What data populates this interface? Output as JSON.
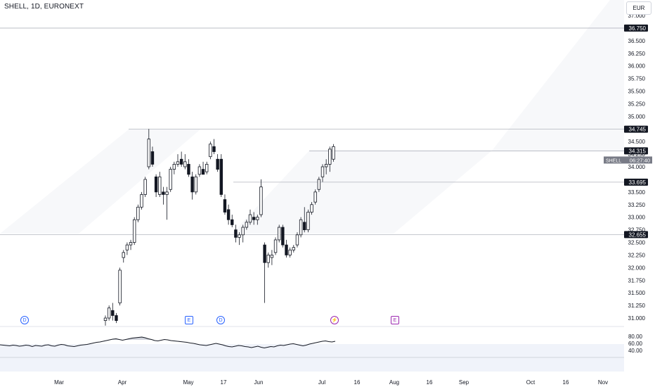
{
  "header": {
    "symbol_title": "SHELL, 1D, EURONEXT",
    "currency_button": "EUR"
  },
  "price_axis": {
    "ticks": [
      "37.000",
      "36.500",
      "36.250",
      "36.000",
      "35.750",
      "35.500",
      "35.250",
      "35.000",
      "34.500",
      "34.250",
      "34.000",
      "33.500",
      "33.250",
      "33.000",
      "32.750",
      "32.500",
      "32.250",
      "32.000",
      "31.750",
      "31.500",
      "31.250",
      "31.000"
    ],
    "level_tags": [
      {
        "value": "36.750",
        "name": "level-tag-36750"
      },
      {
        "value": "34.745",
        "name": "level-tag-34745"
      },
      {
        "value": "34.315",
        "name": "level-tag-34315"
      },
      {
        "value": "33.695",
        "name": "level-tag-33695"
      },
      {
        "value": "32.655",
        "name": "level-tag-32655"
      }
    ],
    "symbol_tag": "SHELL",
    "countdown": "06:27:40"
  },
  "rsi_axis": {
    "ticks": [
      "80.00",
      "60.00",
      "40.00"
    ]
  },
  "time_axis": {
    "labels": [
      "Mar",
      "Apr",
      "May",
      "17",
      "Jun",
      "Jul",
      "16",
      "Aug",
      "16",
      "Sep",
      "Oct",
      "16",
      "Nov"
    ]
  },
  "events": [
    {
      "label": "D",
      "kind": "dividend",
      "name": "dividend-event-icon-1"
    },
    {
      "label": "E",
      "kind": "earnings",
      "name": "earnings-event-icon-1"
    },
    {
      "label": "D",
      "kind": "dividend",
      "name": "dividend-event-icon-2"
    },
    {
      "label": "⚡",
      "kind": "split",
      "name": "flash-event-icon"
    },
    {
      "label": "E",
      "kind": "earnings-upcoming",
      "name": "earnings-event-icon-2"
    }
  ],
  "colors": {
    "candle": "#131722",
    "grid_line": "#b2b5be",
    "rsi_band": "#f0f3fa",
    "event_blue": "#2962ff",
    "event_purple": "#9c27b0",
    "tag_dark": "#131722",
    "tag_grey": "#787b86"
  },
  "chart_data": {
    "type": "candlestick",
    "title": "SHELL, 1D, EURONEXT",
    "y_range": [
      30.9,
      37.1
    ],
    "candles": [
      {
        "o": 30.95,
        "h": 31.05,
        "l": 30.85,
        "c": 31.0
      },
      {
        "o": 31.0,
        "h": 31.25,
        "l": 30.95,
        "c": 31.2
      },
      {
        "o": 31.15,
        "h": 31.3,
        "l": 30.95,
        "c": 31.05
      },
      {
        "o": 31.05,
        "h": 31.1,
        "l": 30.9,
        "c": 30.95
      },
      {
        "o": 31.3,
        "h": 32.0,
        "l": 31.25,
        "c": 31.95
      },
      {
        "o": 32.2,
        "h": 32.35,
        "l": 32.1,
        "c": 32.3
      },
      {
        "o": 32.35,
        "h": 32.5,
        "l": 32.25,
        "c": 32.45
      },
      {
        "o": 32.45,
        "h": 32.55,
        "l": 32.35,
        "c": 32.5
      },
      {
        "o": 32.5,
        "h": 33.0,
        "l": 32.45,
        "c": 32.95
      },
      {
        "o": 32.95,
        "h": 33.25,
        "l": 32.9,
        "c": 33.2
      },
      {
        "o": 33.2,
        "h": 33.5,
        "l": 33.15,
        "c": 33.45
      },
      {
        "o": 33.45,
        "h": 33.8,
        "l": 33.4,
        "c": 33.75
      },
      {
        "o": 34.0,
        "h": 34.75,
        "l": 33.95,
        "c": 34.55
      },
      {
        "o": 34.3,
        "h": 34.4,
        "l": 34.0,
        "c": 34.05
      },
      {
        "o": 33.8,
        "h": 33.85,
        "l": 33.4,
        "c": 33.5
      },
      {
        "o": 33.45,
        "h": 33.9,
        "l": 33.4,
        "c": 33.8
      },
      {
        "o": 33.5,
        "h": 33.6,
        "l": 33.25,
        "c": 33.45
      },
      {
        "o": 33.45,
        "h": 33.6,
        "l": 32.95,
        "c": 33.5
      },
      {
        "o": 33.55,
        "h": 34.0,
        "l": 33.5,
        "c": 33.95
      },
      {
        "o": 33.95,
        "h": 34.1,
        "l": 33.85,
        "c": 34.05
      },
      {
        "o": 34.05,
        "h": 34.25,
        "l": 34.0,
        "c": 34.1
      },
      {
        "o": 34.15,
        "h": 34.3,
        "l": 34.0,
        "c": 34.05
      },
      {
        "o": 34.0,
        "h": 34.25,
        "l": 33.95,
        "c": 34.1
      },
      {
        "o": 34.05,
        "h": 34.15,
        "l": 33.8,
        "c": 33.85
      },
      {
        "o": 33.8,
        "h": 33.9,
        "l": 33.35,
        "c": 33.5
      },
      {
        "o": 33.5,
        "h": 33.85,
        "l": 33.45,
        "c": 33.8
      },
      {
        "o": 33.85,
        "h": 34.05,
        "l": 33.8,
        "c": 34.0
      },
      {
        "o": 33.95,
        "h": 34.1,
        "l": 33.9,
        "c": 33.85
      },
      {
        "o": 33.9,
        "h": 34.1,
        "l": 33.85,
        "c": 34.05
      },
      {
        "o": 34.2,
        "h": 34.5,
        "l": 34.15,
        "c": 34.45
      },
      {
        "o": 34.4,
        "h": 34.55,
        "l": 34.25,
        "c": 34.3
      },
      {
        "o": 34.15,
        "h": 34.25,
        "l": 33.9,
        "c": 33.95
      },
      {
        "o": 34.15,
        "h": 34.25,
        "l": 33.4,
        "c": 33.45
      },
      {
        "o": 33.35,
        "h": 33.45,
        "l": 33.05,
        "c": 33.1
      },
      {
        "o": 33.15,
        "h": 33.25,
        "l": 32.85,
        "c": 32.95
      },
      {
        "o": 32.95,
        "h": 33.05,
        "l": 32.8,
        "c": 32.85
      },
      {
        "o": 32.75,
        "h": 32.85,
        "l": 32.5,
        "c": 32.6
      },
      {
        "o": 32.6,
        "h": 32.7,
        "l": 32.45,
        "c": 32.65
      },
      {
        "o": 32.65,
        "h": 32.85,
        "l": 32.5,
        "c": 32.8
      },
      {
        "o": 32.8,
        "h": 32.95,
        "l": 32.75,
        "c": 32.9
      },
      {
        "o": 32.9,
        "h": 33.15,
        "l": 32.85,
        "c": 33.05
      },
      {
        "o": 33.0,
        "h": 33.1,
        "l": 32.85,
        "c": 32.95
      },
      {
        "o": 32.95,
        "h": 33.05,
        "l": 32.85,
        "c": 33.0
      },
      {
        "o": 33.05,
        "h": 33.75,
        "l": 33.0,
        "c": 33.6
      },
      {
        "o": 32.45,
        "h": 32.5,
        "l": 31.3,
        "c": 32.1
      },
      {
        "o": 32.1,
        "h": 32.3,
        "l": 32.0,
        "c": 32.25
      },
      {
        "o": 32.2,
        "h": 32.35,
        "l": 32.05,
        "c": 32.25
      },
      {
        "o": 32.3,
        "h": 32.6,
        "l": 32.25,
        "c": 32.55
      },
      {
        "o": 32.55,
        "h": 32.85,
        "l": 32.5,
        "c": 32.8
      },
      {
        "o": 32.8,
        "h": 32.85,
        "l": 32.4,
        "c": 32.45
      },
      {
        "o": 32.45,
        "h": 32.55,
        "l": 32.2,
        "c": 32.25
      },
      {
        "o": 32.25,
        "h": 32.4,
        "l": 32.2,
        "c": 32.35
      },
      {
        "o": 32.35,
        "h": 32.45,
        "l": 32.3,
        "c": 32.4
      },
      {
        "o": 32.45,
        "h": 32.7,
        "l": 32.4,
        "c": 32.65
      },
      {
        "o": 32.65,
        "h": 33.0,
        "l": 32.6,
        "c": 32.95
      },
      {
        "o": 32.9,
        "h": 33.2,
        "l": 32.7,
        "c": 32.75
      },
      {
        "o": 32.75,
        "h": 33.15,
        "l": 32.7,
        "c": 33.1
      },
      {
        "o": 33.1,
        "h": 33.3,
        "l": 33.05,
        "c": 33.25
      },
      {
        "o": 33.3,
        "h": 33.55,
        "l": 33.25,
        "c": 33.5
      },
      {
        "o": 33.55,
        "h": 33.8,
        "l": 33.5,
        "c": 33.75
      },
      {
        "o": 33.8,
        "h": 34.05,
        "l": 33.7,
        "c": 34.0
      },
      {
        "o": 34.0,
        "h": 34.15,
        "l": 33.85,
        "c": 34.05
      },
      {
        "o": 34.05,
        "h": 34.4,
        "l": 33.9,
        "c": 34.35
      },
      {
        "o": 34.15,
        "h": 34.45,
        "l": 34.1,
        "c": 34.4
      }
    ],
    "levels": [
      36.75,
      34.745,
      34.315,
      33.695,
      32.655
    ],
    "rsi": {
      "ticks": [
        80,
        60,
        40
      ],
      "values": [
        56,
        55,
        54,
        53,
        55,
        54,
        52,
        53,
        55,
        54,
        51,
        54,
        53,
        52,
        55,
        56,
        53,
        52,
        55,
        57,
        56,
        53,
        52,
        51,
        53,
        55,
        56,
        57,
        59,
        61,
        63,
        64,
        66,
        68,
        70,
        72,
        73,
        71,
        69,
        71,
        73,
        75,
        76,
        77,
        78,
        76,
        73,
        71,
        68,
        67,
        69,
        71,
        70,
        68,
        67,
        66,
        65,
        64,
        63,
        61,
        60,
        58,
        56,
        55,
        54,
        56,
        58,
        60,
        58,
        56,
        53,
        51,
        50,
        52,
        54,
        53,
        51,
        50,
        48,
        50,
        52,
        49,
        47,
        49,
        51,
        50,
        53,
        55,
        54,
        56,
        58,
        59,
        57,
        55,
        53,
        55,
        58,
        60,
        62,
        64,
        66,
        67,
        65,
        64,
        66
      ],
      "band": [
        40,
        80
      ]
    },
    "x_labels": [
      "Mar",
      "Apr",
      "May",
      "17",
      "Jun",
      "Jul",
      "16",
      "Aug",
      "16",
      "Sep",
      "Oct",
      "16",
      "Nov"
    ]
  }
}
